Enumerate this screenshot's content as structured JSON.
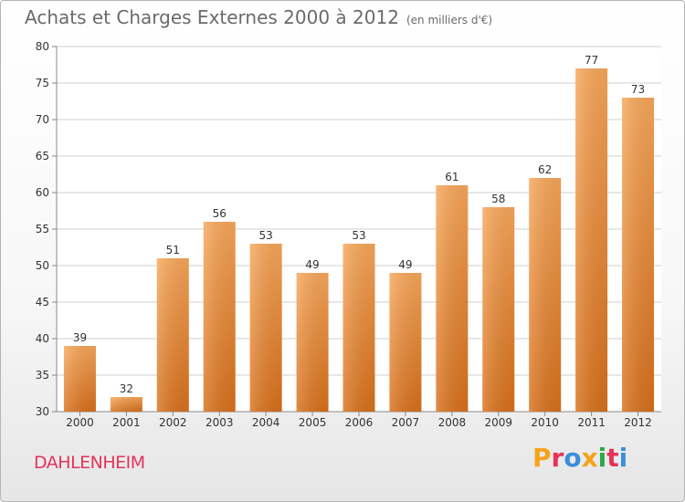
{
  "header": {
    "title": "Achats et Charges Externes 2000 à 2012",
    "subtitle": "(en milliers d'€)"
  },
  "footer": {
    "commune": "DAHLENHEIM",
    "logo_text": "Proxiti",
    "logo_colors": [
      "#f5a31a",
      "#e4345a",
      "#3a8fd8",
      "#f5a31a",
      "#2aa84a",
      "#e4345a",
      "#3a8fd8"
    ]
  },
  "colors": {
    "bar_top": "#f8a75a",
    "bar_bottom": "#d8701b",
    "grid": "#cfcfcf",
    "axis": "#888888"
  },
  "chart_data": {
    "type": "bar",
    "categories": [
      "2000",
      "2001",
      "2002",
      "2003",
      "2004",
      "2005",
      "2006",
      "2007",
      "2008",
      "2009",
      "2010",
      "2011",
      "2012"
    ],
    "values": [
      39,
      32,
      51,
      56,
      53,
      49,
      53,
      49,
      61,
      58,
      62,
      77,
      73
    ],
    "ylim": [
      30,
      80
    ],
    "yticks": [
      30,
      35,
      40,
      45,
      50,
      55,
      60,
      65,
      70,
      75,
      80
    ],
    "grid": true,
    "legend": "none"
  }
}
